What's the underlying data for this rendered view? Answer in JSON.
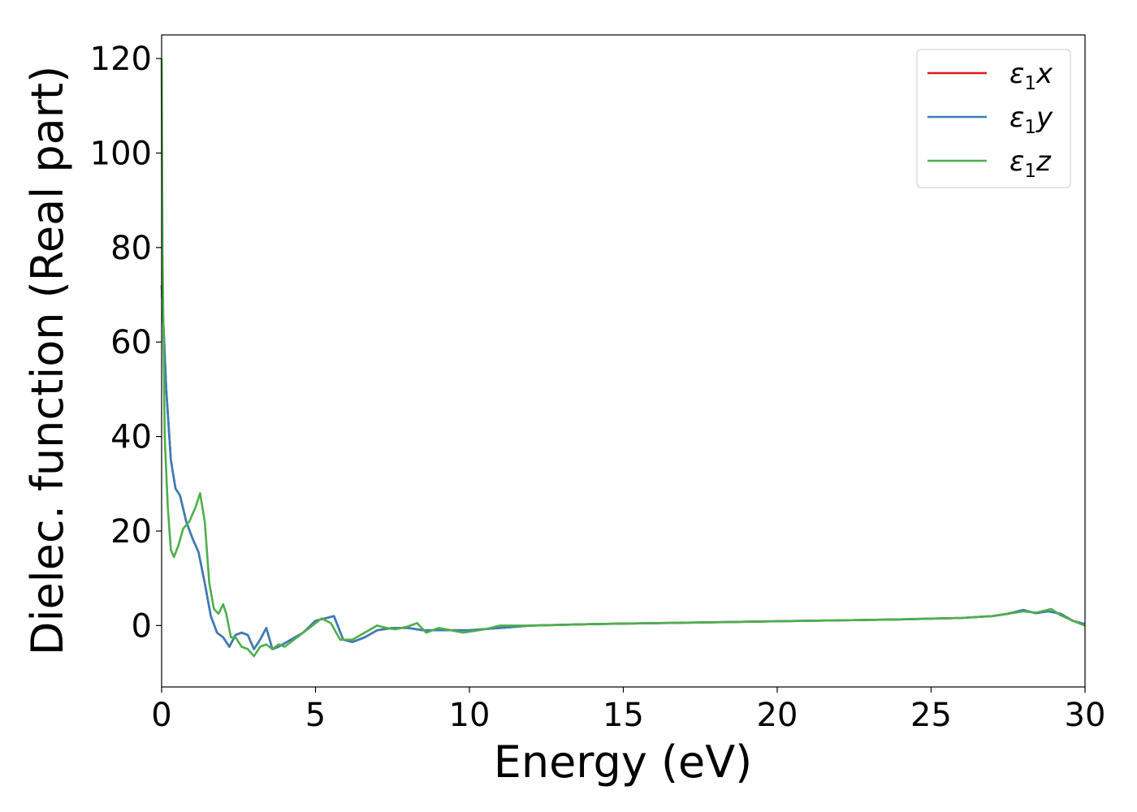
{
  "chart_data": {
    "type": "line",
    "xlabel": "Energy (eV)",
    "ylabel": "Dielec. function (Real part)",
    "xlim": [
      0,
      30
    ],
    "ylim": [
      -13,
      125
    ],
    "x_ticks": [
      0,
      5,
      10,
      15,
      20,
      25,
      30
    ],
    "y_ticks": [
      0,
      20,
      40,
      60,
      80,
      100,
      120
    ],
    "grid": false,
    "legend_position": "top-right",
    "series": [
      {
        "name": "ε1x",
        "legend": {
          "symbol": "ε",
          "sub": "1",
          "var": "x"
        },
        "color": "#e41a1c",
        "x": [
          0,
          0.05,
          0.15,
          0.3,
          0.45,
          0.6,
          0.8,
          1.0,
          1.2,
          1.4,
          1.6,
          1.8,
          2.0,
          2.2,
          2.4,
          2.6,
          2.8,
          3.0,
          3.2,
          3.4,
          3.6,
          3.8,
          4.2,
          4.6,
          5.0,
          5.3,
          5.6,
          5.9,
          6.2,
          6.6,
          7.0,
          7.5,
          8.0,
          8.5,
          9.0,
          9.5,
          10,
          11,
          12,
          14,
          16,
          18,
          20,
          22,
          24,
          26,
          27,
          27.5,
          28,
          28.4,
          28.8,
          29.2,
          29.6,
          30
        ],
        "y": [
          72,
          65,
          50,
          35,
          29,
          27.5,
          22,
          18.5,
          15.5,
          9,
          2,
          -1.5,
          -2.5,
          -4.5,
          -2,
          -1.5,
          -2,
          -5,
          -3,
          -0.5,
          -5,
          -4.5,
          -3,
          -1.5,
          1,
          1.5,
          2,
          -3,
          -3.5,
          -2.5,
          -1,
          -0.5,
          -0.5,
          -1,
          -1,
          -1,
          -1,
          -0.5,
          0,
          0.3,
          0.5,
          0.7,
          0.9,
          1.1,
          1.3,
          1.6,
          2.0,
          2.5,
          3.3,
          2.6,
          3.0,
          2.5,
          1.0,
          0.3
        ]
      },
      {
        "name": "ε1y",
        "legend": {
          "symbol": "ε",
          "sub": "1",
          "var": "y"
        },
        "color": "#377eb8",
        "x": [
          0,
          0.05,
          0.15,
          0.3,
          0.45,
          0.6,
          0.8,
          1.0,
          1.2,
          1.4,
          1.6,
          1.8,
          2.0,
          2.2,
          2.4,
          2.6,
          2.8,
          3.0,
          3.2,
          3.4,
          3.6,
          3.8,
          4.2,
          4.6,
          5.0,
          5.3,
          5.6,
          5.9,
          6.2,
          6.6,
          7.0,
          7.5,
          8.0,
          8.5,
          9.0,
          9.5,
          10,
          11,
          12,
          14,
          16,
          18,
          20,
          22,
          24,
          26,
          27,
          27.5,
          28,
          28.4,
          28.8,
          29.2,
          29.6,
          30
        ],
        "y": [
          72,
          65,
          50,
          35,
          29,
          27.5,
          22,
          18.5,
          15.5,
          9,
          2,
          -1.5,
          -2.5,
          -4.5,
          -2,
          -1.5,
          -2,
          -5,
          -3,
          -0.5,
          -5,
          -4.5,
          -3,
          -1.5,
          1,
          1.5,
          2,
          -3,
          -3.5,
          -2.5,
          -1,
          -0.5,
          -0.5,
          -1,
          -1,
          -1,
          -1,
          -0.5,
          0,
          0.3,
          0.5,
          0.7,
          0.9,
          1.1,
          1.3,
          1.6,
          2.0,
          2.5,
          3.3,
          2.6,
          3.0,
          2.5,
          1.0,
          0.3
        ]
      },
      {
        "name": "ε1z",
        "legend": {
          "symbol": "ε",
          "sub": "1",
          "var": "z"
        },
        "color": "#4daf4a",
        "x": [
          0,
          0.03,
          0.1,
          0.2,
          0.3,
          0.4,
          0.55,
          0.7,
          0.9,
          1.1,
          1.25,
          1.4,
          1.55,
          1.7,
          1.85,
          2.0,
          2.1,
          2.25,
          2.4,
          2.6,
          2.8,
          3.0,
          3.2,
          3.4,
          3.6,
          3.8,
          4.0,
          4.4,
          4.8,
          5.2,
          5.5,
          5.8,
          6.2,
          6.6,
          7.0,
          7.3,
          7.6,
          8.0,
          8.3,
          8.6,
          9.0,
          9.4,
          9.8,
          10.5,
          11,
          12,
          14,
          16,
          18,
          20,
          22,
          24,
          26,
          27,
          27.5,
          28,
          28.4,
          28.9,
          29.2,
          29.6,
          30
        ],
        "y": [
          120,
          80,
          40,
          25,
          16,
          14.5,
          17,
          20.5,
          22,
          25,
          28,
          22,
          9,
          3.5,
          2.5,
          4.5,
          2.5,
          -2.5,
          -2.5,
          -4.5,
          -5,
          -6.5,
          -4.5,
          -4,
          -5,
          -4,
          -4.5,
          -2.5,
          -0.5,
          1.5,
          0.5,
          -3,
          -3,
          -1.5,
          0,
          -0.5,
          -0.8,
          -0.2,
          0.5,
          -1.5,
          -0.5,
          -1,
          -1.5,
          -0.8,
          0,
          0,
          0.3,
          0.5,
          0.7,
          0.9,
          1.1,
          1.3,
          1.6,
          2.0,
          2.5,
          3.0,
          2.7,
          3.5,
          2.2,
          1.0,
          0
        ]
      }
    ]
  }
}
